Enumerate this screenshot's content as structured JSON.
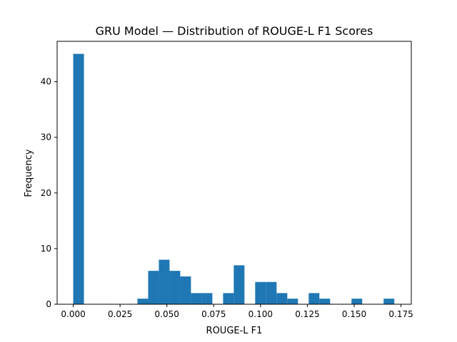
{
  "chart_data": {
    "type": "bar",
    "title": "GRU Model — Distribution of ROUGE-L F1 Scores",
    "xlabel": "ROUGE-L F1",
    "ylabel": "Frequency",
    "xlim": [
      -0.0086,
      0.1805
    ],
    "ylim": [
      0,
      47.25
    ],
    "bin_width": 0.005714,
    "bin_starts": [
      0.0,
      0.005714,
      0.011429,
      0.017143,
      0.022857,
      0.028571,
      0.034286,
      0.04,
      0.045714,
      0.051429,
      0.057143,
      0.062857,
      0.068571,
      0.074286,
      0.08,
      0.085714,
      0.091429,
      0.097143,
      0.102857,
      0.108571,
      0.114286,
      0.12,
      0.125714,
      0.131429,
      0.137143,
      0.142857,
      0.148571,
      0.154286,
      0.16,
      0.165714
    ],
    "values": [
      45,
      0,
      0,
      0,
      0,
      0,
      1,
      6,
      8,
      6,
      5,
      2,
      2,
      0,
      2,
      7,
      0,
      4,
      4,
      2,
      1,
      0,
      2,
      1,
      0,
      0,
      1,
      0,
      0,
      1
    ],
    "x_ticks": [
      0.0,
      0.025,
      0.05,
      0.075,
      0.1,
      0.125,
      0.15,
      0.175
    ],
    "x_tick_labels": [
      "0.000",
      "0.025",
      "0.050",
      "0.075",
      "0.100",
      "0.125",
      "0.150",
      "0.175"
    ],
    "y_ticks": [
      0,
      10,
      20,
      30,
      40
    ],
    "y_tick_labels": [
      "0",
      "10",
      "20",
      "30",
      "40"
    ],
    "bar_color": "#1f77b4",
    "grid": false
  }
}
